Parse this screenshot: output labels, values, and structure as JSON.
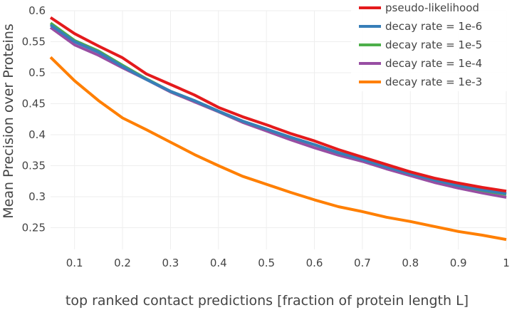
{
  "chart_data": {
    "type": "line",
    "title": "",
    "xlabel": "top ranked contact predictions [fraction of protein length L]",
    "ylabel": "Mean Precision over Proteins",
    "xlim": [
      0.05,
      1.0
    ],
    "ylim": [
      0.215,
      0.6
    ],
    "xticks": [
      0.1,
      0.2,
      0.3,
      0.4,
      0.5,
      0.6,
      0.7,
      0.8,
      0.9,
      1.0
    ],
    "xtick_labels": [
      "0.1",
      "0.2",
      "0.3",
      "0.4",
      "0.5",
      "0.6",
      "0.7",
      "0.8",
      "0.9",
      "1"
    ],
    "yticks": [
      0.25,
      0.3,
      0.35,
      0.4,
      0.45,
      0.5,
      0.55,
      0.6
    ],
    "ytick_labels": [
      "0.25",
      "0.3",
      "0.35",
      "0.4",
      "0.45",
      "0.5",
      "0.55",
      "0.6"
    ],
    "grid": true,
    "legend_position": "top-right",
    "x": [
      0.05,
      0.1,
      0.15,
      0.2,
      0.25,
      0.3,
      0.35,
      0.4,
      0.45,
      0.5,
      0.55,
      0.6,
      0.65,
      0.7,
      0.75,
      0.8,
      0.85,
      0.9,
      0.95,
      1.0
    ],
    "series": [
      {
        "name": "pseudo-likelihood",
        "color": "#e41a1c",
        "values": [
          0.589,
          0.563,
          0.543,
          0.524,
          0.498,
          0.481,
          0.464,
          0.444,
          0.429,
          0.416,
          0.402,
          0.39,
          0.376,
          0.364,
          0.352,
          0.34,
          0.33,
          0.322,
          0.315,
          0.309
        ]
      },
      {
        "name": "decay rate = 1e-6",
        "color": "#377eb8",
        "values": [
          0.577,
          0.55,
          0.533,
          0.51,
          0.489,
          0.47,
          0.455,
          0.438,
          0.422,
          0.409,
          0.396,
          0.384,
          0.371,
          0.36,
          0.348,
          0.337,
          0.327,
          0.318,
          0.311,
          0.305
        ]
      },
      {
        "name": "decay rate = 1e-5",
        "color": "#4daf4a",
        "values": [
          0.58,
          0.552,
          0.535,
          0.512,
          0.49,
          0.47,
          0.455,
          0.438,
          0.422,
          0.409,
          0.396,
          0.384,
          0.371,
          0.361,
          0.349,
          0.337,
          0.327,
          0.318,
          0.31,
          0.304
        ]
      },
      {
        "name": "decay rate = 1e-4",
        "color": "#984ea3",
        "values": [
          0.573,
          0.545,
          0.528,
          0.508,
          0.489,
          0.469,
          0.453,
          0.437,
          0.42,
          0.406,
          0.392,
          0.379,
          0.367,
          0.357,
          0.345,
          0.334,
          0.323,
          0.314,
          0.306,
          0.299
        ]
      },
      {
        "name": "decay rate = 1e-3",
        "color": "#ff7f00",
        "values": [
          0.525,
          0.487,
          0.455,
          0.427,
          0.408,
          0.388,
          0.368,
          0.35,
          0.333,
          0.32,
          0.307,
          0.295,
          0.284,
          0.276,
          0.267,
          0.26,
          0.252,
          0.244,
          0.238,
          0.231
        ]
      }
    ]
  }
}
